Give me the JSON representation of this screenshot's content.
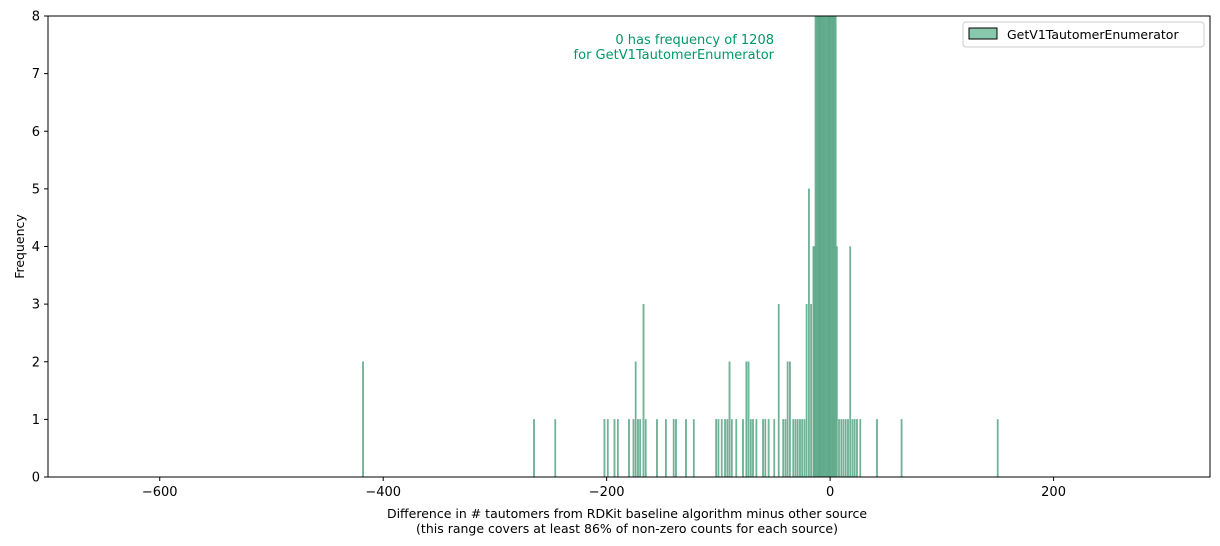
{
  "chart_data": {
    "type": "bar",
    "title": "",
    "xlabel": "Difference in # tautomers from RDKit baseline algorithm minus other source",
    "xlabel_line2": "(this range covers at least 86% of non-zero counts for each source)",
    "ylabel": "Frequency",
    "xlim": [
      -700,
      340
    ],
    "ylim": [
      0,
      8
    ],
    "x_ticks": [
      -600,
      -400,
      -200,
      0,
      200
    ],
    "x_tick_labels": [
      "−600",
      "−400",
      "−200",
      "0",
      "200"
    ],
    "y_ticks": [
      0,
      1,
      2,
      3,
      4,
      5,
      6,
      7,
      8
    ],
    "y_tick_labels": [
      "0",
      "1",
      "2",
      "3",
      "4",
      "5",
      "6",
      "7",
      "8"
    ],
    "grid": false,
    "legend_position": "top-right",
    "color": "#5aaa8a",
    "bin_width": 1,
    "series": [
      {
        "name": "GetV1TautomerEnumerator",
        "x": [
          -418,
          -265,
          -246,
          -202,
          -199,
          -193,
          -190,
          -180,
          -176,
          -174,
          -172,
          -170,
          -167,
          -165,
          -155,
          -147,
          -140,
          -138,
          -129,
          -122,
          -102,
          -100,
          -97,
          -94,
          -92,
          -90,
          -88,
          -84,
          -78,
          -75,
          -73,
          -71,
          -69,
          -66,
          -60,
          -58,
          -55,
          -50,
          -46,
          -42,
          -40,
          -38,
          -36,
          -33,
          -31,
          -29,
          -27,
          -25,
          -23,
          -21,
          -19,
          -17,
          -15,
          -14,
          -13,
          -12,
          -11,
          -10,
          -9,
          -8,
          -7,
          -6,
          -5,
          -4,
          -3,
          -2,
          -1,
          0,
          1,
          2,
          3,
          4,
          5,
          6,
          8,
          10,
          12,
          14,
          16,
          18,
          20,
          22,
          24,
          27,
          42,
          64,
          150
        ],
        "values": [
          2,
          1,
          1,
          1,
          1,
          1,
          1,
          1,
          1,
          2,
          1,
          1,
          3,
          1,
          1,
          1,
          1,
          1,
          1,
          1,
          1,
          1,
          1,
          1,
          1,
          2,
          1,
          1,
          1,
          2,
          2,
          1,
          1,
          1,
          1,
          1,
          1,
          1,
          3,
          1,
          1,
          2,
          2,
          1,
          1,
          1,
          1,
          1,
          1,
          3,
          5,
          3,
          4,
          4,
          8,
          8,
          8,
          8,
          8,
          8,
          8,
          8,
          8,
          8,
          8,
          8,
          8,
          8,
          8,
          8,
          8,
          8,
          8,
          4,
          1,
          1,
          1,
          1,
          1,
          4,
          1,
          1,
          1,
          1,
          1,
          1,
          1
        ]
      }
    ],
    "annotation": {
      "line1": "0 has frequency of 1208",
      "line2": "for GetV1TautomerEnumerator",
      "color": "#009966"
    }
  }
}
